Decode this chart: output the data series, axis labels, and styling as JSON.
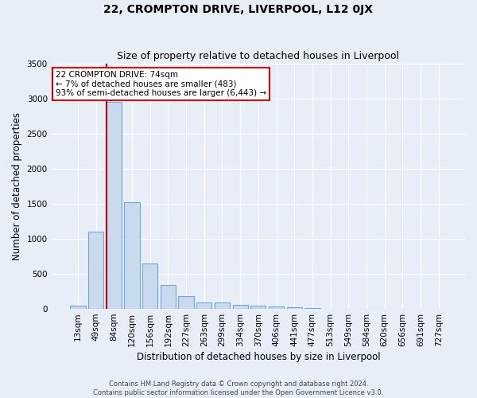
{
  "title": "22, CROMPTON DRIVE, LIVERPOOL, L12 0JX",
  "subtitle": "Size of property relative to detached houses in Liverpool",
  "xlabel": "Distribution of detached houses by size in Liverpool",
  "ylabel": "Number of detached properties",
  "categories": [
    "13sqm",
    "49sqm",
    "84sqm",
    "120sqm",
    "156sqm",
    "192sqm",
    "227sqm",
    "263sqm",
    "299sqm",
    "334sqm",
    "370sqm",
    "406sqm",
    "441sqm",
    "477sqm",
    "513sqm",
    "549sqm",
    "584sqm",
    "620sqm",
    "656sqm",
    "691sqm",
    "727sqm"
  ],
  "values": [
    50,
    1100,
    2950,
    1520,
    650,
    340,
    185,
    95,
    90,
    60,
    50,
    30,
    20,
    10,
    6,
    5,
    4,
    3,
    2,
    2,
    2
  ],
  "highlight_index": 2,
  "bar_color": "#c9d9ee",
  "bar_edge_color": "#6aaad4",
  "highlight_bar_color": "#c9d9ee",
  "highlight_bar_edge_color": "#6aaad4",
  "highlight_vline_color": "#cc0000",
  "background_color": "#e8eef7",
  "plot_bg_color": "#e8eef7",
  "ylim": [
    0,
    3500
  ],
  "yticks": [
    0,
    500,
    1000,
    1500,
    2000,
    2500,
    3000,
    3500
  ],
  "annotation_title": "22 CROMPTON DRIVE: 74sqm",
  "annotation_line1": "← 7% of detached houses are smaller (483)",
  "annotation_line2": "93% of semi-detached houses are larger (6,443) →",
  "annotation_box_color": "#ffffff",
  "annotation_border_color": "#cc0000",
  "footer_line1": "Contains HM Land Registry data © Crown copyright and database right 2024.",
  "footer_line2": "Contains public sector information licensed under the Open Government Licence v3.0.",
  "title_fontsize": 10,
  "subtitle_fontsize": 9,
  "axis_label_fontsize": 8.5,
  "tick_fontsize": 7.5,
  "annot_fontsize": 7.5
}
